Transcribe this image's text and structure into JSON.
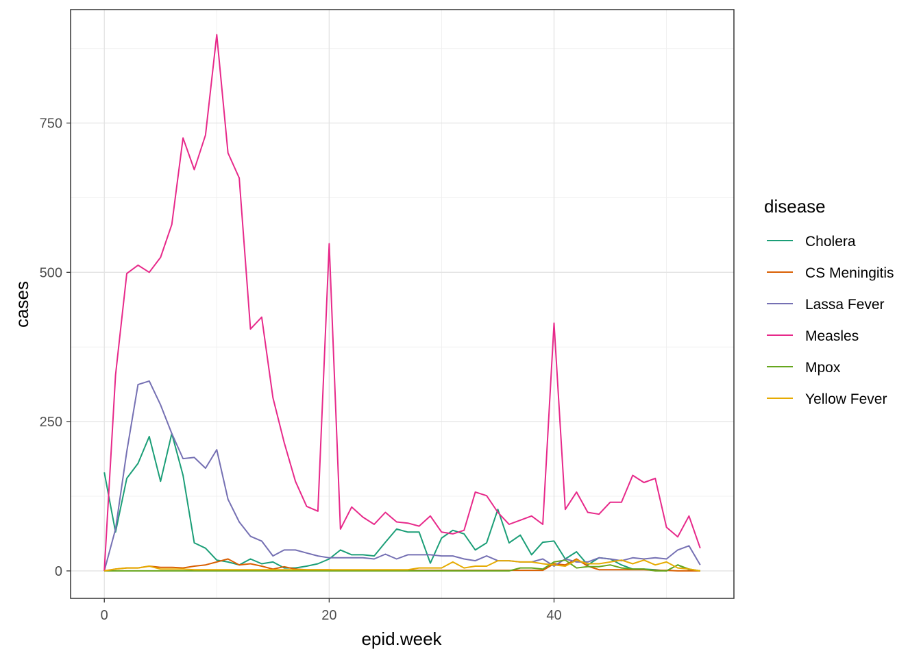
{
  "chart_data": {
    "type": "line",
    "xlabel": "epid.week",
    "ylabel": "cases",
    "xlim": [
      -3,
      56
    ],
    "ylim": [
      -46,
      940
    ],
    "x_ticks": [
      0,
      20,
      40
    ],
    "y_ticks": [
      0,
      250,
      500,
      750
    ],
    "x_tick_labels": [
      "0",
      "20",
      "40"
    ],
    "y_tick_labels": [
      "0",
      "250",
      "500",
      "750"
    ],
    "grid": true,
    "legend": {
      "title": "disease",
      "position": "right"
    },
    "x": [
      0,
      1,
      2,
      3,
      4,
      5,
      6,
      7,
      8,
      9,
      10,
      11,
      12,
      13,
      14,
      15,
      16,
      17,
      18,
      19,
      20,
      21,
      22,
      23,
      24,
      25,
      26,
      27,
      28,
      29,
      30,
      31,
      32,
      33,
      34,
      35,
      36,
      37,
      38,
      39,
      40,
      41,
      42,
      43,
      44,
      45,
      46,
      47,
      48,
      49,
      50,
      51,
      52,
      53
    ],
    "series": [
      {
        "name": "Cholera",
        "color": "#1B9E77",
        "values": [
          165,
          65,
          155,
          180,
          225,
          150,
          230,
          160,
          47,
          38,
          18,
          15,
          10,
          20,
          12,
          15,
          5,
          5,
          8,
          12,
          20,
          35,
          27,
          27,
          25,
          48,
          70,
          65,
          65,
          13,
          55,
          68,
          62,
          35,
          47,
          103,
          47,
          60,
          27,
          48,
          50,
          20,
          32,
          10,
          22,
          20,
          10,
          3,
          3,
          2,
          0,
          10,
          2,
          0
        ]
      },
      {
        "name": "CS Meningitis",
        "color": "#D95F02",
        "values": [
          0,
          3,
          5,
          5,
          8,
          6,
          6,
          5,
          8,
          10,
          15,
          20,
          10,
          12,
          8,
          3,
          7,
          3,
          2,
          2,
          2,
          1,
          1,
          1,
          1,
          1,
          1,
          1,
          1,
          1,
          1,
          1,
          1,
          1,
          1,
          1,
          1,
          1,
          1,
          1,
          12,
          10,
          20,
          8,
          2,
          2,
          2,
          2,
          2,
          1,
          1,
          0,
          0,
          0
        ]
      },
      {
        "name": "Lassa Fever",
        "color": "#7570B3",
        "values": [
          0,
          70,
          200,
          312,
          318,
          278,
          230,
          188,
          190,
          172,
          203,
          120,
          82,
          58,
          50,
          25,
          35,
          35,
          30,
          25,
          22,
          22,
          22,
          22,
          20,
          28,
          20,
          27,
          27,
          27,
          25,
          25,
          20,
          17,
          25,
          17,
          17,
          15,
          15,
          20,
          8,
          20,
          15,
          15,
          22,
          20,
          17,
          22,
          20,
          22,
          20,
          35,
          42,
          10
        ]
      },
      {
        "name": "Measles",
        "color": "#E7298A",
        "values": [
          0,
          328,
          498,
          512,
          500,
          525,
          580,
          725,
          672,
          730,
          898,
          700,
          658,
          405,
          425,
          290,
          215,
          150,
          108,
          100,
          548,
          70,
          107,
          90,
          78,
          98,
          82,
          80,
          75,
          92,
          65,
          62,
          68,
          132,
          126,
          98,
          78,
          85,
          92,
          78,
          415,
          103,
          132,
          98,
          95,
          115,
          115,
          160,
          148,
          155,
          73,
          57,
          92,
          38
        ]
      },
      {
        "name": "Mpox",
        "color": "#66A61E",
        "values": [
          0,
          0,
          0,
          0,
          0,
          0,
          0,
          0,
          0,
          0,
          0,
          0,
          0,
          0,
          0,
          0,
          0,
          0,
          0,
          0,
          0,
          0,
          0,
          0,
          0,
          0,
          0,
          0,
          0,
          0,
          0,
          0,
          0,
          0,
          0,
          0,
          0,
          5,
          5,
          3,
          15,
          18,
          5,
          7,
          7,
          10,
          5,
          3,
          3,
          0,
          0,
          10,
          3,
          0
        ]
      },
      {
        "name": "Yellow Fever",
        "color": "#E6AB02",
        "values": [
          0,
          3,
          5,
          5,
          8,
          3,
          3,
          3,
          2,
          2,
          2,
          2,
          2,
          2,
          2,
          2,
          2,
          2,
          2,
          2,
          2,
          2,
          2,
          2,
          2,
          2,
          2,
          2,
          5,
          5,
          5,
          15,
          5,
          8,
          8,
          17,
          17,
          15,
          15,
          12,
          10,
          8,
          18,
          12,
          12,
          15,
          18,
          12,
          18,
          10,
          15,
          5,
          3,
          0
        ]
      }
    ]
  }
}
